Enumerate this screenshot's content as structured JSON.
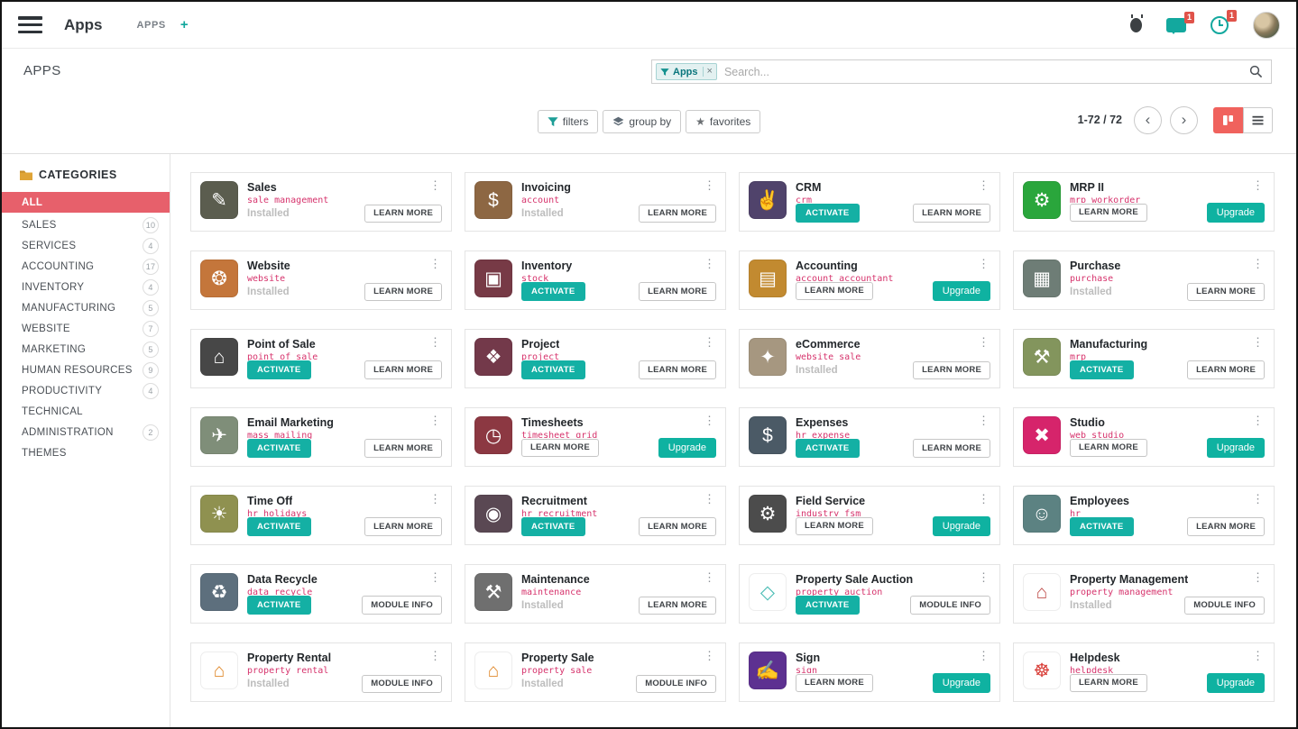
{
  "navbar": {
    "app_title": "Apps",
    "breadcrumb": "APPS",
    "add_label": "+",
    "badges": {
      "messages": "1",
      "activities": "1"
    }
  },
  "control": {
    "page_title": "APPS",
    "search": {
      "facet_label": "Apps",
      "facet_remove": "×",
      "placeholder": "Search..."
    },
    "filters": "filters",
    "group_by": "group by",
    "favorites": "favorites",
    "pager_range": "1-72 / 72"
  },
  "icons": {
    "kebab": "⋮",
    "prev": "‹",
    "next": "›",
    "star": "★",
    "folder": "folder-icon",
    "funnel": "filter-funnel-icon",
    "layers": "group-by-layers-icon",
    "magnifier": "search-magnifier-icon",
    "kanban": "kanban-view-icon",
    "list": "list-view-icon"
  },
  "colors": {
    "accent_teal": "#14b0a4",
    "selected_category": "#e7606b",
    "tech_name_pink": "#d6336c",
    "kanban_active": "#f0625d",
    "badge_red": "#e0534a"
  },
  "labels": {
    "activate": "ACTIVATE",
    "installed": "Installed",
    "learn_more": "LEARN MORE",
    "module_info": "MODULE INFO",
    "upgrade": "Upgrade"
  },
  "sidebar": {
    "header": "CATEGORIES",
    "items": [
      {
        "label": "ALL",
        "count": null,
        "selected": true
      },
      {
        "label": "SALES",
        "count": "10"
      },
      {
        "label": "SERVICES",
        "count": "4"
      },
      {
        "label": "ACCOUNTING",
        "count": "17"
      },
      {
        "label": "INVENTORY",
        "count": "4"
      },
      {
        "label": "MANUFACTURING",
        "count": "5"
      },
      {
        "label": "WEBSITE",
        "count": "7"
      },
      {
        "label": "MARKETING",
        "count": "5"
      },
      {
        "label": "HUMAN RESOURCES",
        "count": "9"
      },
      {
        "label": "PRODUCTIVITY",
        "count": "4"
      },
      {
        "label": "TECHNICAL",
        "count": null
      },
      {
        "label": "ADMINISTRATION",
        "count": "2"
      },
      {
        "label": "THEMES",
        "count": null
      }
    ]
  },
  "apps": [
    {
      "name": "Sales",
      "tech": "sale_management",
      "glyph": "✎",
      "bg": "#5b5d4f",
      "fg": "#ffffff",
      "left": "installed",
      "right": "learn"
    },
    {
      "name": "Invoicing",
      "tech": "account",
      "glyph": "$",
      "bg": "#8d6743",
      "fg": "#ffffff",
      "left": "installed",
      "right": "learn"
    },
    {
      "name": "CRM",
      "tech": "crm",
      "glyph": "✌",
      "bg": "#50436b",
      "fg": "#ffffff",
      "left": "activate",
      "right": "learn"
    },
    {
      "name": "MRP II",
      "tech": "mrp_workorder",
      "glyph": "⚙",
      "bg": "#2aa63c",
      "fg": "#ffffff",
      "left": "learn",
      "right": "upgrade"
    },
    {
      "name": "Website",
      "tech": "website",
      "glyph": "❂",
      "bg": "#c4763b",
      "fg": "#ffffff",
      "left": "installed",
      "right": "learn"
    },
    {
      "name": "Inventory",
      "tech": "stock",
      "glyph": "▣",
      "bg": "#773a46",
      "fg": "#ffffff",
      "left": "activate",
      "right": "learn"
    },
    {
      "name": "Accounting",
      "tech": "account_accountant",
      "glyph": "▤",
      "bg": "#c28a30",
      "fg": "#ffffff",
      "left": "learn",
      "right": "upgrade"
    },
    {
      "name": "Purchase",
      "tech": "purchase",
      "glyph": "▦",
      "bg": "#6e7d76",
      "fg": "#ffffff",
      "left": "installed",
      "right": "learn"
    },
    {
      "name": "Point of Sale",
      "tech": "point_of_sale",
      "glyph": "⌂",
      "bg": "#474747",
      "fg": "#ffffff",
      "left": "activate",
      "right": "learn"
    },
    {
      "name": "Project",
      "tech": "project",
      "glyph": "❖",
      "bg": "#73394a",
      "fg": "#ffffff",
      "left": "activate",
      "right": "learn"
    },
    {
      "name": "eCommerce",
      "tech": "website_sale",
      "glyph": "✦",
      "bg": "#a69780",
      "fg": "#ffffff",
      "left": "installed",
      "right": "learn"
    },
    {
      "name": "Manufacturing",
      "tech": "mrp",
      "glyph": "⚒",
      "bg": "#83955d",
      "fg": "#ffffff",
      "left": "activate",
      "right": "learn"
    },
    {
      "name": "Email Marketing",
      "tech": "mass_mailing",
      "glyph": "✈",
      "bg": "#7f8e79",
      "fg": "#ffffff",
      "left": "activate",
      "right": "learn"
    },
    {
      "name": "Timesheets",
      "tech": "timesheet_grid",
      "glyph": "◷",
      "bg": "#8c3842",
      "fg": "#ffffff",
      "left": "learn",
      "right": "upgrade"
    },
    {
      "name": "Expenses",
      "tech": "hr_expense",
      "glyph": "$",
      "bg": "#4b5a66",
      "fg": "#ffffff",
      "left": "activate",
      "right": "learn"
    },
    {
      "name": "Studio",
      "tech": "web_studio",
      "glyph": "✖",
      "bg": "#d6246b",
      "fg": "#ffffff",
      "left": "learn",
      "right": "upgrade"
    },
    {
      "name": "Time Off",
      "tech": "hr_holidays",
      "glyph": "☀",
      "bg": "#8f9150",
      "fg": "#ffffff",
      "left": "activate",
      "right": "learn"
    },
    {
      "name": "Recruitment",
      "tech": "hr_recruitment",
      "glyph": "◉",
      "bg": "#5a4853",
      "fg": "#ffffff",
      "left": "activate",
      "right": "learn"
    },
    {
      "name": "Field Service",
      "tech": "industry_fsm",
      "glyph": "⚙",
      "bg": "#4c4c4c",
      "fg": "#ffffff",
      "left": "learn",
      "right": "upgrade"
    },
    {
      "name": "Employees",
      "tech": "hr",
      "glyph": "☺",
      "bg": "#5c8282",
      "fg": "#ffffff",
      "left": "activate",
      "right": "learn"
    },
    {
      "name": "Data Recycle",
      "tech": "data_recycle",
      "glyph": "♻",
      "bg": "#5d6f7d",
      "fg": "#ffffff",
      "left": "activate",
      "right": "module"
    },
    {
      "name": "Maintenance",
      "tech": "maintenance",
      "glyph": "⚒",
      "bg": "#6f6f6f",
      "fg": "#ffffff",
      "left": "installed",
      "right": "learn"
    },
    {
      "name": "Property Sale Auction",
      "tech": "property_auction",
      "glyph": "◇",
      "bg": "#ffffff",
      "fg": "#4dbdb5",
      "left": "activate",
      "right": "module"
    },
    {
      "name": "Property Management",
      "tech": "property_management",
      "glyph": "⌂",
      "bg": "#ffffff",
      "fg": "#c0504d",
      "left": "installed",
      "right": "module"
    },
    {
      "name": "Property Rental",
      "tech": "property_rental",
      "glyph": "⌂",
      "bg": "#ffffff",
      "fg": "#e08a2e",
      "left": "installed",
      "right": "module"
    },
    {
      "name": "Property Sale",
      "tech": "property_sale",
      "glyph": "⌂",
      "bg": "#ffffff",
      "fg": "#e08a2e",
      "left": "installed",
      "right": "module"
    },
    {
      "name": "Sign",
      "tech": "sign",
      "glyph": "✍",
      "bg": "#5d3191",
      "fg": "#ffffff",
      "left": "learn",
      "right": "upgrade"
    },
    {
      "name": "Helpdesk",
      "tech": "helpdesk",
      "glyph": "☸",
      "bg": "#ffffff",
      "fg": "#d9403a",
      "left": "learn",
      "right": "upgrade"
    }
  ]
}
